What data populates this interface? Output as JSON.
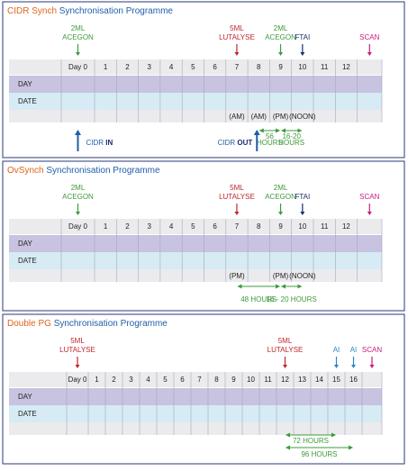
{
  "panels": [
    {
      "title_a": "CIDR Synch",
      "title_b": "Synchronisation Programme",
      "columns": [
        "Day 0",
        "1",
        "2",
        "3",
        "4",
        "5",
        "6",
        "7",
        "8",
        "9",
        "10",
        "11",
        "12",
        null
      ],
      "rows": [
        "DAY",
        "DATE"
      ],
      "top_labels": [
        {
          "lines": [
            "2ML",
            "ACEGON"
          ],
          "color": "#3d9a3d"
        },
        null,
        null,
        null,
        null,
        null,
        null,
        {
          "lines": [
            "5ML",
            "LUTALYSE"
          ],
          "color": "#c0262d"
        },
        null,
        {
          "lines": [
            "2ML",
            "ACEGON"
          ],
          "color": "#3d9a3d"
        },
        {
          "lines": [
            "FTAI"
          ],
          "color": "#1c2b6e"
        },
        null,
        null,
        {
          "lines": [
            "SCAN"
          ],
          "color": "#c81d7b"
        }
      ],
      "notes": [
        null,
        null,
        null,
        null,
        null,
        null,
        null,
        "(AM)",
        "(AM)",
        "(PM)",
        "(NOON)",
        null,
        null,
        null
      ],
      "spans": [
        {
          "lines": [
            "56",
            "HOURS"
          ]
        },
        {
          "lines": [
            "16-20",
            "HOURS"
          ]
        }
      ],
      "markers": [
        {
          "lines": [
            "CIDR",
            "IN"
          ]
        },
        {
          "lines": [
            "CIDR",
            "OUT"
          ]
        }
      ]
    },
    {
      "title_a": "OvSynch",
      "title_b": "Synchronisation Programme",
      "columns": [
        "Day 0",
        "1",
        "2",
        "3",
        "4",
        "5",
        "6",
        "7",
        "8",
        "9",
        "10",
        "11",
        "12",
        null
      ],
      "rows": [
        "DAY",
        "DATE"
      ],
      "top_labels": [
        {
          "lines": [
            "2ML",
            "ACEGON"
          ],
          "color": "#3d9a3d"
        },
        null,
        null,
        null,
        null,
        null,
        null,
        {
          "lines": [
            "5ML",
            "LUTALYSE"
          ],
          "color": "#c0262d"
        },
        null,
        {
          "lines": [
            "2ML",
            "ACEGON"
          ],
          "color": "#3d9a3d"
        },
        {
          "lines": [
            "FTAI"
          ],
          "color": "#1c2b6e"
        },
        null,
        null,
        {
          "lines": [
            "SCAN"
          ],
          "color": "#c81d7b"
        }
      ],
      "notes": [
        null,
        null,
        null,
        null,
        null,
        null,
        null,
        "(PM)",
        null,
        "(PM)",
        "(NOON)",
        null,
        null,
        null
      ],
      "spans": [
        {
          "lines": [
            "48 HOURS"
          ]
        },
        {
          "lines": [
            "16 - 20 HOURS"
          ]
        }
      ]
    },
    {
      "title_a": "Double PG",
      "title_b": "Synchronisation Programme",
      "columns": [
        "Day 0",
        "1",
        "2",
        "3",
        "4",
        "5",
        "6",
        "7",
        "8",
        "9",
        "10",
        "11",
        "12",
        "13",
        "14",
        "15",
        "16",
        null
      ],
      "rows": [
        "DAY",
        "DATE"
      ],
      "top_labels": [
        {
          "lines": [
            "5ML",
            "LUTALYSE"
          ],
          "color": "#c0262d"
        },
        null,
        null,
        null,
        null,
        null,
        null,
        null,
        null,
        null,
        null,
        null,
        {
          "lines": [
            "5ML",
            "LUTALYSE"
          ],
          "color": "#c0262d"
        },
        null,
        null,
        {
          "lines": [
            "AI"
          ],
          "color": "#2b86c5"
        },
        {
          "lines": [
            "AI"
          ],
          "color": "#2b86c5"
        },
        {
          "lines": [
            "SCAN"
          ],
          "color": "#c81d7b"
        }
      ],
      "spans": [
        {
          "lines": [
            "72 HOURS"
          ]
        },
        {
          "lines": [
            "96 HOURS"
          ]
        }
      ]
    }
  ]
}
